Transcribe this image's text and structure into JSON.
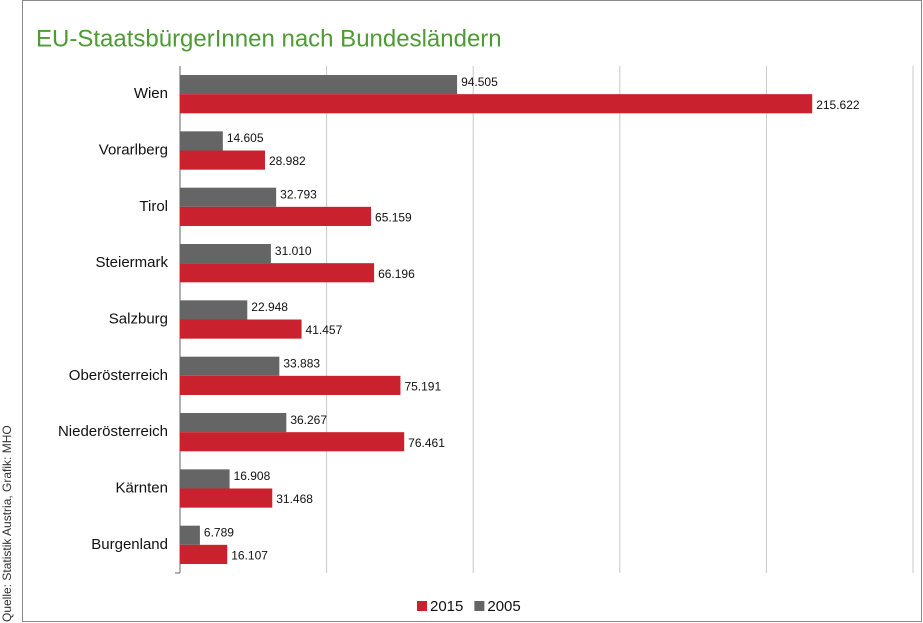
{
  "chart_data": {
    "type": "bar",
    "orientation": "horizontal",
    "title": "EU-StaatsbürgerInnen nach Bundesländern",
    "source": "Quelle: Statistik Austria, Grafik: MHO",
    "categories": [
      "Wien",
      "Vorarlberg",
      "Tirol",
      "Steiermark",
      "Salzburg",
      "Oberösterreich",
      "Niederösterreich",
      "Kärnten",
      "Burgenland"
    ],
    "series": [
      {
        "name": "2015",
        "color": "#c9212d",
        "values": [
          215622,
          28982,
          65159,
          66196,
          41457,
          75191,
          76461,
          31468,
          16107
        ],
        "value_labels": [
          "215.622",
          "28.982",
          "65.159",
          "66.196",
          "41.457",
          "75.191",
          "76.461",
          "31.468",
          "16.107"
        ]
      },
      {
        "name": "2005",
        "color": "#656565",
        "values": [
          94505,
          14605,
          32793,
          31010,
          22948,
          33883,
          36267,
          16908,
          6789
        ],
        "value_labels": [
          "94.505",
          "14.605",
          "32.793",
          "31.010",
          "22.948",
          "33.883",
          "36.267",
          "16.908",
          "6.789"
        ]
      }
    ],
    "xlim": [
      0,
      250000
    ],
    "xticks": [
      0,
      50000,
      100000,
      150000,
      200000,
      250000
    ],
    "grid": true,
    "legend": "bottom"
  }
}
